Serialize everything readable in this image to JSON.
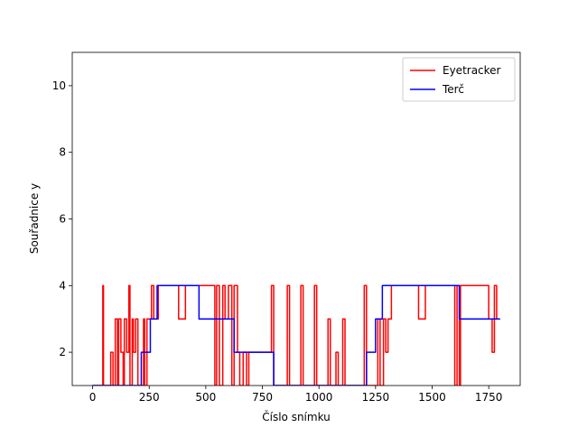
{
  "chart_data": {
    "type": "line",
    "xlabel": "Číslo snímku",
    "ylabel": "Souřadnice y",
    "xlim": [
      -90,
      1889
    ],
    "ylim": [
      1,
      11
    ],
    "xticks": [
      0,
      250,
      500,
      750,
      1000,
      1250,
      1500,
      1750
    ],
    "yticks": [
      2,
      4,
      6,
      8,
      10
    ],
    "legend": "upper right",
    "series": [
      {
        "name": "Eyetracker",
        "color": "#ff0000",
        "x": [
          0,
          45,
          45,
          48,
          48,
          80,
          80,
          90,
          90,
          100,
          100,
          110,
          110,
          115,
          115,
          125,
          125,
          135,
          135,
          140,
          140,
          150,
          150,
          160,
          160,
          165,
          165,
          175,
          175,
          180,
          180,
          190,
          190,
          200,
          200,
          225,
          225,
          230,
          230,
          240,
          240,
          260,
          260,
          270,
          270,
          290,
          290,
          380,
          380,
          410,
          410,
          540,
          540,
          548,
          548,
          560,
          560,
          575,
          575,
          585,
          585,
          600,
          600,
          615,
          615,
          625,
          625,
          640,
          640,
          650,
          650,
          665,
          665,
          680,
          680,
          690,
          690,
          790,
          790,
          800,
          800,
          860,
          860,
          870,
          870,
          920,
          920,
          930,
          930,
          980,
          980,
          990,
          990,
          1040,
          1040,
          1050,
          1050,
          1075,
          1075,
          1085,
          1085,
          1105,
          1105,
          1115,
          1115,
          1200,
          1200,
          1210,
          1210,
          1260,
          1260,
          1270,
          1270,
          1285,
          1285,
          1295,
          1295,
          1305,
          1305,
          1320,
          1320,
          1440,
          1440,
          1470,
          1470,
          1600,
          1600,
          1610,
          1610,
          1620,
          1620,
          1625,
          1625,
          1750,
          1750,
          1765,
          1765,
          1775,
          1775,
          1785,
          1785,
          1800
        ],
        "values": [
          1,
          1,
          4,
          4,
          1,
          1,
          2,
          2,
          1,
          1,
          3,
          3,
          1,
          1,
          3,
          3,
          2,
          2,
          1,
          1,
          3,
          3,
          2,
          2,
          4,
          4,
          1,
          1,
          3,
          3,
          2,
          2,
          3,
          3,
          1,
          1,
          3,
          3,
          1,
          1,
          3,
          3,
          4,
          4,
          3,
          3,
          4,
          4,
          3,
          3,
          4,
          4,
          1,
          1,
          4,
          4,
          1,
          1,
          4,
          4,
          3,
          3,
          4,
          4,
          1,
          1,
          4,
          4,
          2,
          2,
          1,
          1,
          2,
          2,
          1,
          1,
          2,
          2,
          4,
          4,
          1,
          1,
          4,
          4,
          1,
          1,
          4,
          4,
          1,
          1,
          4,
          4,
          1,
          1,
          3,
          3,
          1,
          1,
          2,
          2,
          1,
          1,
          3,
          3,
          1,
          1,
          4,
          4,
          1,
          1,
          3,
          3,
          1,
          1,
          3,
          3,
          2,
          2,
          3,
          3,
          4,
          4,
          3,
          3,
          4,
          4,
          1,
          1,
          4,
          4,
          1,
          1,
          4,
          4,
          3,
          3,
          2,
          2,
          4,
          4,
          3,
          3
        ]
      },
      {
        "name": "Terč",
        "color": "#0000ff",
        "x": [
          0,
          215,
          215,
          255,
          255,
          285,
          285,
          470,
          470,
          625,
          625,
          800,
          800,
          1210,
          1210,
          1250,
          1250,
          1280,
          1280,
          1620,
          1620,
          1800
        ],
        "values": [
          1,
          1,
          2,
          2,
          3,
          3,
          4,
          4,
          3,
          3,
          2,
          2,
          1,
          1,
          2,
          2,
          3,
          3,
          4,
          4,
          3,
          3
        ]
      }
    ]
  }
}
